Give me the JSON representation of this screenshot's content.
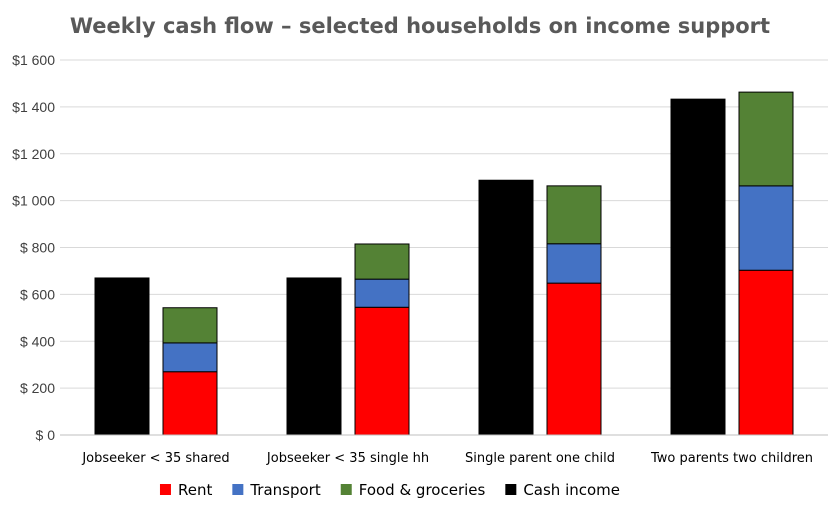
{
  "chart_data": {
    "type": "bar",
    "title": "Weekly cash flow –  selected households on income support",
    "xlabel": "",
    "ylabel": "",
    "ylim": [
      0,
      1600
    ],
    "yticks": [
      0,
      200,
      400,
      600,
      800,
      1000,
      1200,
      1400,
      1600
    ],
    "ytick_labels": [
      "$ 0",
      "$ 200",
      "$ 400",
      "$ 600",
      "$ 800",
      "$1 000",
      "$1 200",
      "$1 400",
      "$1 600"
    ],
    "grid": true,
    "legend_position": "bottom",
    "categories": [
      "Jobseeker < 35 shared",
      "Jobseeker < 35 single hh",
      "Single parent one child",
      "Two parents two children"
    ],
    "series": [
      {
        "name": "Rent",
        "stack": "expenses",
        "color": "#ff0000",
        "values": [
          270,
          545,
          648,
          703
        ]
      },
      {
        "name": "Transport",
        "stack": "expenses",
        "color": "#4472c4",
        "values": [
          123,
          120,
          168,
          360
        ]
      },
      {
        "name": "Food & groceries",
        "stack": "expenses",
        "color": "#548235",
        "values": [
          150,
          150,
          247,
          400
        ]
      },
      {
        "name": "Cash income",
        "stack": "income",
        "color": "#000000",
        "values": [
          670,
          670,
          1087,
          1433
        ]
      }
    ]
  }
}
